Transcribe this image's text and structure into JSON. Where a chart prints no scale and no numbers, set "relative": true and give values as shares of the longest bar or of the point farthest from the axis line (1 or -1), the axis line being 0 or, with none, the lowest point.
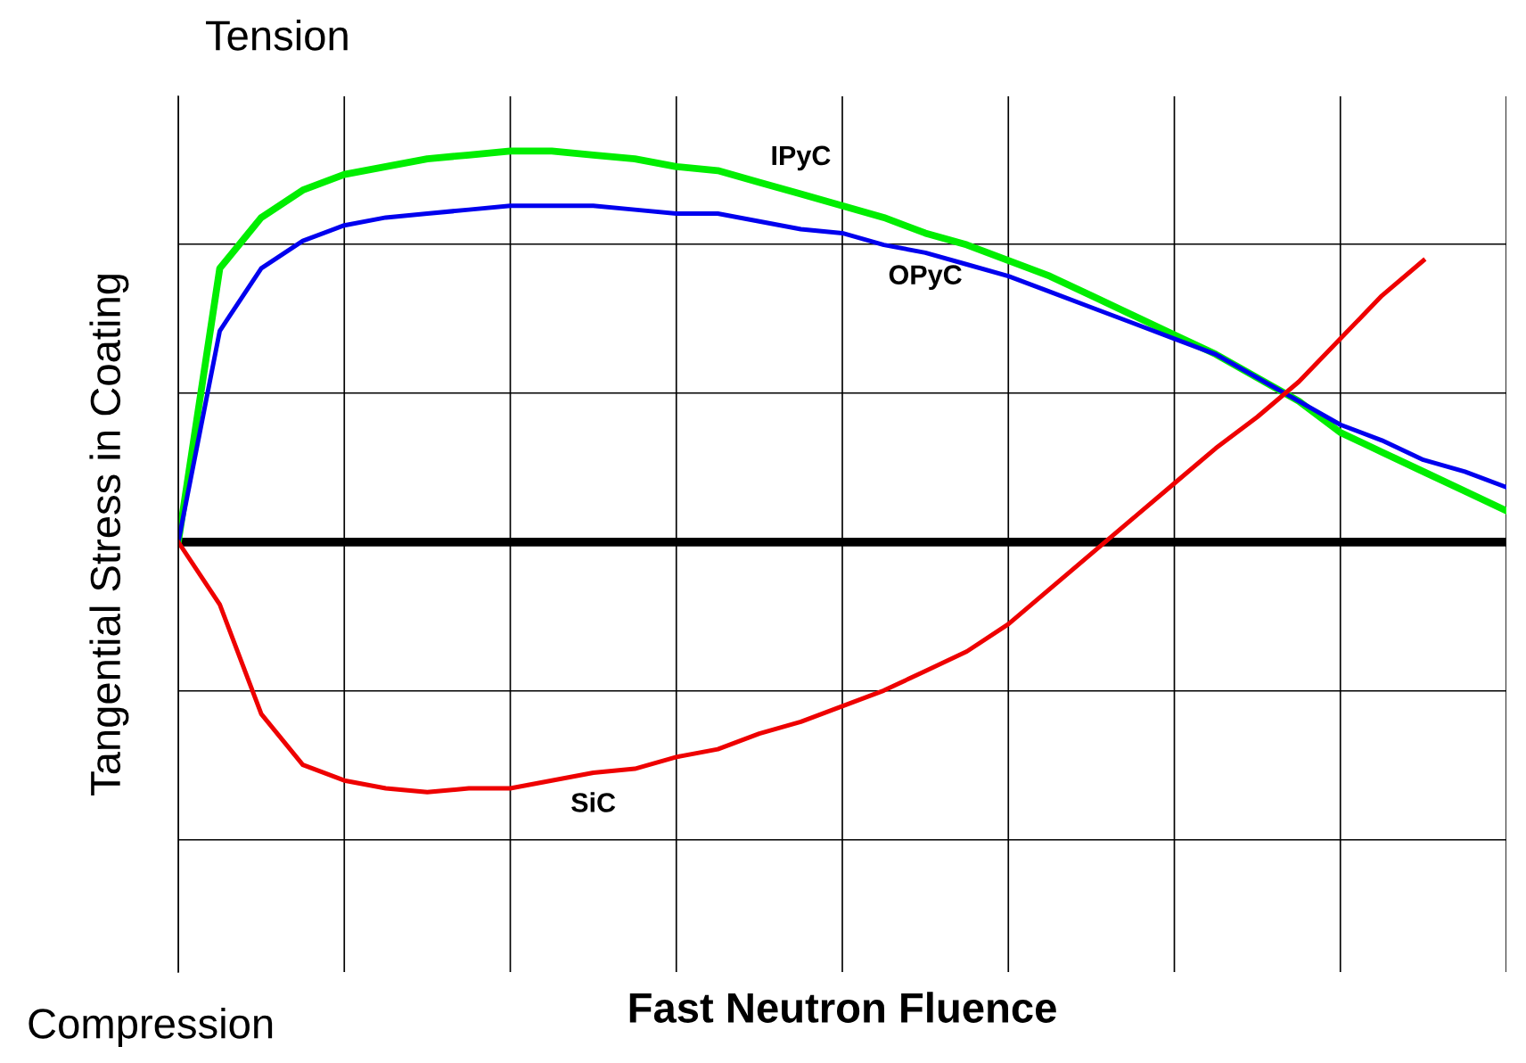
{
  "chart_data": {
    "type": "line",
    "relative": true,
    "grid": true,
    "xlabel": "Fast Neutron Fluence",
    "ylabel": "Tangential Stress in Coating",
    "annotations": [
      "Tension",
      "Compression"
    ],
    "categories": [
      null,
      null,
      null,
      null,
      null,
      null,
      null,
      null,
      null,
      null,
      null,
      null,
      null,
      null,
      null,
      null,
      null,
      null,
      null,
      null,
      null,
      null,
      null,
      null,
      null,
      null,
      null,
      null,
      null,
      null,
      null,
      null,
      null
    ],
    "series": [
      {
        "name": "IPyC",
        "color": "#00ee00",
        "values": [
          0,
          0.7,
          0.83,
          0.9,
          0.94,
          0.96,
          0.98,
          0.99,
          1.0,
          1.0,
          0.99,
          0.98,
          0.96,
          0.95,
          0.92,
          0.89,
          0.86,
          0.83,
          0.79,
          0.76,
          0.72,
          0.68,
          0.63,
          0.58,
          0.53,
          0.48,
          0.42,
          0.36,
          0.28,
          0.23,
          0.18,
          0.13,
          0.08
        ]
      },
      {
        "name": "OPyC",
        "color": "#0000ee",
        "values": [
          0,
          0.54,
          0.7,
          0.77,
          0.81,
          0.83,
          0.84,
          0.85,
          0.86,
          0.86,
          0.86,
          0.85,
          0.84,
          0.84,
          0.82,
          0.8,
          0.79,
          0.76,
          0.74,
          0.71,
          0.68,
          0.64,
          0.6,
          0.56,
          0.52,
          0.48,
          0.42,
          0.36,
          0.3,
          0.26,
          0.21,
          0.18,
          0.14
        ]
      },
      {
        "name": "SiC",
        "color": "#ee0000",
        "values": [
          0,
          -0.16,
          -0.44,
          -0.57,
          -0.61,
          -0.63,
          -0.64,
          -0.63,
          -0.63,
          -0.61,
          -0.59,
          -0.58,
          -0.55,
          -0.53,
          -0.49,
          -0.46,
          -0.42,
          -0.38,
          -0.33,
          -0.28,
          -0.21,
          -0.12,
          -0.03,
          0.06,
          0.15,
          0.24,
          0.32,
          0.41,
          0.52,
          0.63,
          0.72,
          null,
          null
        ]
      }
    ]
  }
}
